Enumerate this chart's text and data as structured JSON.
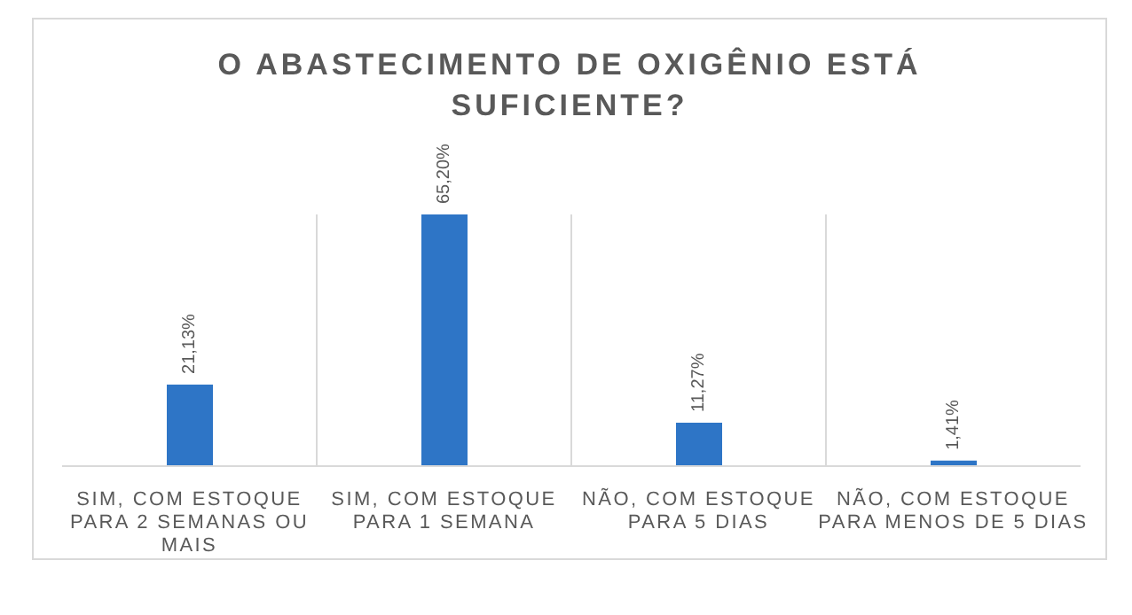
{
  "chart_data": {
    "type": "bar",
    "title": "O ABASTECIMENTO DE OXIGÊNIO ESTÁ SUFICIENTE?",
    "categories": [
      "SIM, COM ESTOQUE PARA 2 SEMANAS OU MAIS",
      "SIM, COM ESTOQUE PARA 1 SEMANA",
      "NÃO, COM ESTOQUE PARA 5 DIAS",
      "NÃO, COM ESTOQUE PARA MENOS DE 5 DIAS"
    ],
    "values": [
      21.13,
      65.2,
      11.27,
      1.41
    ],
    "value_labels": [
      "21,13%",
      "65,20%",
      "11,27%",
      "1,41%"
    ],
    "color": "#2e75c6",
    "grid": "x"
  }
}
